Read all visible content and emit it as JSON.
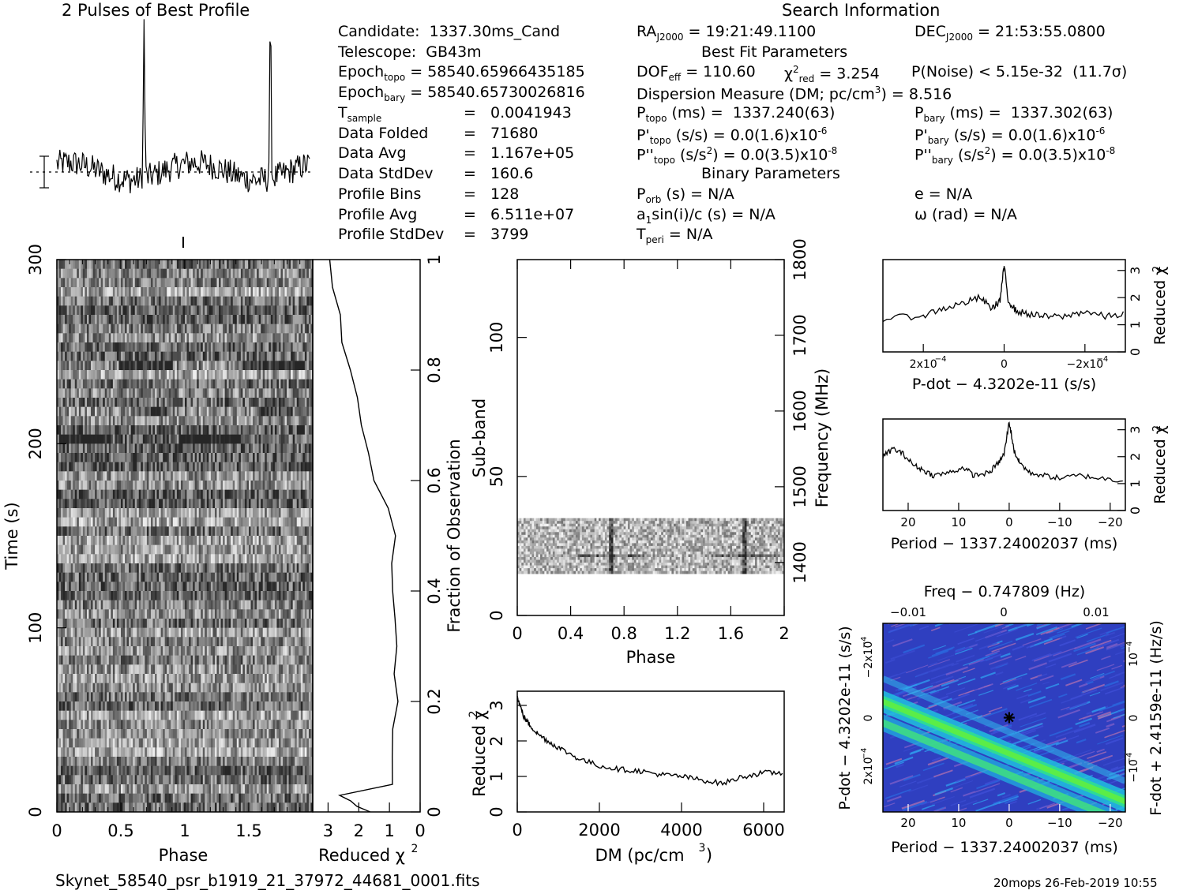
{
  "header": {
    "profile_title": "2 Pulses of Best Profile",
    "search_title": "Search Information",
    "footer_file": "Skynet_58540_psr_b1919_21_37972_44681_0001.fits",
    "footer_stamp": "20mops 26-Feb-2019 10:55"
  },
  "info": {
    "candidate": "Candidate:  1337.30ms_Cand",
    "telescope": "Telescope:  GB43m",
    "epoch_topo_lbl": "Epoch",
    "epoch_topo_sub": "topo",
    "epoch_topo_val": " = 58540.65966435185",
    "epoch_bary_lbl": "Epoch",
    "epoch_bary_sub": "bary",
    "epoch_bary_val": " = 58540.65730026816",
    "tsample_lbl": "T",
    "tsample_sub": "sample",
    "tsample_val": "=   0.0041943",
    "data_folded_lbl": "Data Folded",
    "data_folded_val": "=   71680",
    "data_avg_lbl": "Data Avg",
    "data_avg_val": "=   1.167e+05",
    "data_std_lbl": "Data StdDev",
    "data_std_val": "=   160.6",
    "prof_bins_lbl": "Profile Bins",
    "prof_bins_val": "=   128",
    "prof_avg_lbl": "Profile Avg",
    "prof_avg_val": "=   6.511e+07",
    "prof_std_lbl": "Profile StdDev",
    "prof_std_val": "=   3799"
  },
  "search": {
    "ra_lbl": "RA",
    "ra_sub": "J2000",
    "ra_val": " = 19:21:49.1100",
    "dec_lbl": "DEC",
    "dec_sub": "J2000",
    "dec_val": " = 21:53:55.0800",
    "best_fit": "Best Fit Parameters",
    "dof_lbl": "DOF",
    "dof_sub": "eff",
    "dof_val": " = 110.60",
    "chi_lbl": "χ",
    "chi_sup": "2",
    "chi_sub": "red",
    "chi_val": " = 3.254",
    "pnoise": "P(Noise) < 5.15e-32  (11.7σ)",
    "dm_text": "Dispersion Measure (DM; pc/cm",
    "dm_sup": "3",
    "dm_val": ") = 8.516",
    "ptopo_lbl": "P",
    "ptopo_sub": "topo",
    "ptopo_val": " (ms) =  1337.240(63)",
    "pbary_lbl": "P",
    "pbary_sub": "bary",
    "pbary_val": " (ms) =  1337.302(63)",
    "pdtopo_lbl": "P'",
    "pdtopo_sub": "topo",
    "pdtopo_val": " (s/s) = 0.0(1.6)x10",
    "pdtopo_exp": "-6",
    "pdbary_lbl": "P'",
    "pdbary_sub": "bary",
    "pdbary_val": " (s/s) = 0.0(1.6)x10",
    "pdbary_exp": "-6",
    "pddtopo_lbl": "P''",
    "pddtopo_sub": "topo",
    "pddtopo_val": " (s/s",
    "pddtopo_sup2": "2",
    "pddtopo_val2": ") = 0.0(3.5)x10",
    "pddtopo_exp": "-8",
    "pddbary_lbl": "P''",
    "pddbary_sub": "bary",
    "pddbary_val": " (s/s",
    "pddbary_sup2": "2",
    "pddbary_val2": ") = 0.0(3.5)x10",
    "pddbary_exp": "-8",
    "binary": "Binary Parameters",
    "porb_lbl": "P",
    "porb_sub": "orb",
    "porb_val": " (s) = N/A",
    "ecc": "e = N/A",
    "asini": "a",
    "asini_sub": "1",
    "asini_val": "sin(i)/c (s) = N/A",
    "omega": "ω (rad) = N/A",
    "tperi_lbl": "T",
    "tperi_sub": "peri",
    "tperi_val": " = N/A"
  },
  "chart_data": [
    {
      "type": "line",
      "name": "profile",
      "title": "2 Pulses of Best Profile",
      "x_range": [
        0,
        2
      ],
      "description_values": {
        "pulse_phases": [
          0.69,
          1.69
        ],
        "baseline": "noise"
      }
    },
    {
      "type": "heatmap",
      "name": "time-phase",
      "xlabel": "Phase",
      "ylabel": "Time (s)",
      "xlim": [
        0,
        2
      ],
      "ylim": [
        0,
        300
      ],
      "x_ticks": [
        "0",
        "0.5",
        "1",
        "1.5"
      ],
      "y_ticks": [
        "0",
        "100",
        "200",
        "300"
      ],
      "right_axis_label": "Fraction of Observation",
      "right_ticks": [
        "0",
        "0.2",
        "0.4",
        "0.6",
        "0.8",
        "1"
      ]
    },
    {
      "type": "line",
      "name": "reduced-chi2-time",
      "xlabel": "Reduced χ",
      "xlabel_sup": "2",
      "x_ticks": [
        "3",
        "2",
        "1",
        "0"
      ],
      "xlim": [
        3.5,
        0
      ],
      "points": [
        [
          1.6,
          0.0
        ],
        [
          2.0,
          0.01
        ],
        [
          2.3,
          0.02
        ],
        [
          2.6,
          0.03
        ],
        [
          0.9,
          0.05
        ],
        [
          0.95,
          0.1
        ],
        [
          0.85,
          0.15
        ],
        [
          0.7,
          0.2
        ],
        [
          0.85,
          0.25
        ],
        [
          0.75,
          0.3
        ],
        [
          0.8,
          0.35
        ],
        [
          0.9,
          0.4
        ],
        [
          0.95,
          0.45
        ],
        [
          0.85,
          0.5
        ],
        [
          1.0,
          0.55
        ],
        [
          1.5,
          0.6
        ],
        [
          1.7,
          0.65
        ],
        [
          1.9,
          0.7
        ],
        [
          2.0,
          0.75
        ],
        [
          2.3,
          0.8
        ],
        [
          2.5,
          0.85
        ],
        [
          2.6,
          0.9
        ],
        [
          2.8,
          0.95
        ],
        [
          2.9,
          1.0
        ]
      ]
    },
    {
      "type": "heatmap",
      "name": "subband-phase",
      "xlabel": "Phase",
      "ylabel": "Sub-band",
      "right_axis_label": "Frequency (MHz)",
      "xlim": [
        0,
        2
      ],
      "ylim": [
        0,
        128
      ],
      "x_ticks": [
        "0",
        "0.4",
        "0.8",
        "1.2",
        "1.6",
        "2"
      ],
      "y_ticks": [
        "0",
        "50",
        "100"
      ],
      "right_ticks": [
        "1400",
        "1500",
        "1600",
        "1700",
        "1800"
      ],
      "data_band": [
        15,
        35
      ]
    },
    {
      "type": "line",
      "name": "dm-chi2",
      "xlabel": "DM (pc/cm",
      "xlabel_sup": "3",
      "xlabel_end": ")",
      "ylabel": "Reduced χ",
      "ylabel_sup": "2",
      "xlim": [
        0,
        6500
      ],
      "ylim": [
        0,
        3.4
      ],
      "x_ticks": [
        "0",
        "2000",
        "4000",
        "6000"
      ],
      "y_ticks": [
        "0",
        "1",
        "2",
        "3"
      ],
      "points": [
        [
          0,
          3.25
        ],
        [
          150,
          2.7
        ],
        [
          300,
          2.45
        ],
        [
          500,
          2.2
        ],
        [
          800,
          1.95
        ],
        [
          1100,
          1.75
        ],
        [
          1500,
          1.5
        ],
        [
          2000,
          1.3
        ],
        [
          2500,
          1.2
        ],
        [
          3000,
          1.15
        ],
        [
          3500,
          1.05
        ],
        [
          4000,
          1.0
        ],
        [
          4500,
          0.9
        ],
        [
          5000,
          0.8
        ],
        [
          5500,
          1.0
        ],
        [
          6000,
          1.1
        ],
        [
          6500,
          1.1
        ]
      ]
    },
    {
      "type": "line",
      "name": "pdot-chi2",
      "xlabel": "P-dot − 4.3202e-11 (s/s)",
      "ylabel": "Reduced χ",
      "ylabel_sup": "2",
      "x_ticks": [
        "2x10",
        "0",
        "−2x10"
      ],
      "x_tick_exp": "−4",
      "y_ticks": [
        "0",
        "1",
        "2",
        "3"
      ],
      "xlim": [
        0.0003,
        -0.0003
      ],
      "ylim": [
        0,
        3.4
      ],
      "points": [
        [
          0.0003,
          1.2
        ],
        [
          0.0002,
          1.35
        ],
        [
          0.00015,
          1.6
        ],
        [
          0.0001,
          1.8
        ],
        [
          6e-05,
          2.0
        ],
        [
          3e-05,
          1.6
        ],
        [
          1e-05,
          1.9
        ],
        [
          0,
          3.2
        ],
        [
          -1e-05,
          1.9
        ],
        [
          -3e-05,
          1.5
        ],
        [
          -6e-05,
          1.4
        ],
        [
          -0.0001,
          1.3
        ],
        [
          -0.00015,
          1.3
        ],
        [
          -0.0002,
          1.5
        ],
        [
          -0.00025,
          1.3
        ],
        [
          -0.0003,
          1.4
        ]
      ]
    },
    {
      "type": "line",
      "name": "period-chi2",
      "xlabel": "Period − 1337.24002037 (ms)",
      "ylabel": "Reduced χ",
      "ylabel_sup": "2",
      "x_ticks": [
        "20",
        "10",
        "0",
        "−10",
        "−20"
      ],
      "y_ticks": [
        "0",
        "1",
        "2",
        "3"
      ],
      "xlim": [
        25,
        -23
      ],
      "ylim": [
        0,
        3.4
      ],
      "points": [
        [
          25,
          2.0
        ],
        [
          23,
          2.3
        ],
        [
          21,
          2.1
        ],
        [
          19,
          1.7
        ],
        [
          17,
          1.5
        ],
        [
          15,
          1.3
        ],
        [
          12,
          1.4
        ],
        [
          9,
          1.6
        ],
        [
          7,
          1.3
        ],
        [
          4,
          1.4
        ],
        [
          2,
          1.8
        ],
        [
          1,
          2.1
        ],
        [
          0,
          3.3
        ],
        [
          -1,
          2.2
        ],
        [
          -2,
          1.8
        ],
        [
          -4,
          1.4
        ],
        [
          -7,
          1.3
        ],
        [
          -10,
          1.2
        ],
        [
          -14,
          1.3
        ],
        [
          -18,
          1.2
        ],
        [
          -23,
          1.1
        ]
      ]
    },
    {
      "type": "heatmap",
      "name": "period-pdot",
      "xlabel": "Period − 1337.24002037 (ms)",
      "ylabel": "P-dot − 4.3202e-11 (s/s)",
      "top_label": "Freq − 0.747809 (Hz)",
      "right_label": "F-dot + 2.4159e-11 (Hz/s)",
      "x_ticks": [
        "20",
        "10",
        "0",
        "−10",
        "−20"
      ],
      "top_ticks": [
        "−0.01",
        "0",
        "0.01"
      ],
      "left_ticks": [
        "−2x10",
        "0",
        "2x10"
      ],
      "left_tick_exp": "−4",
      "right_ticks": [
        "10",
        "0",
        "−10"
      ],
      "right_tick_exp": "−4",
      "xlim": [
        25,
        -23
      ],
      "ylim": [
        -0.0003,
        0.0003
      ]
    }
  ]
}
